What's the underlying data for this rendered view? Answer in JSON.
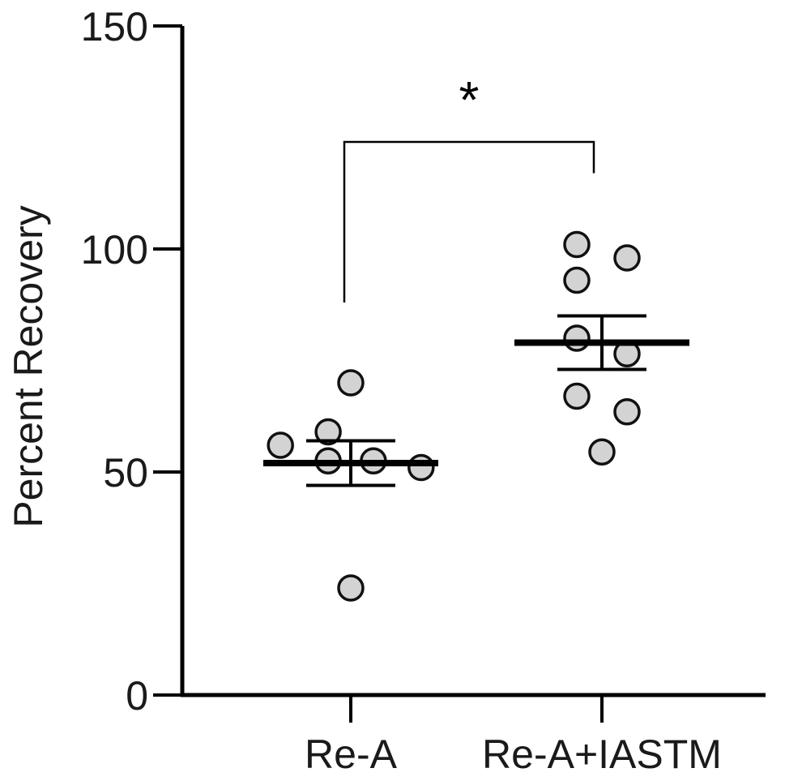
{
  "chart_data": {
    "type": "scatter",
    "title": "",
    "xlabel": "",
    "ylabel": "Percent Recovery",
    "ylim": [
      0,
      150
    ],
    "yticks": [
      0,
      50,
      100,
      150
    ],
    "categories": [
      "Re-A",
      "Re-A+IASTM"
    ],
    "groups": [
      {
        "category": "Re-A",
        "points": [
          {
            "offset": -0.28,
            "value": 56
          },
          {
            "offset": -0.09,
            "value": 59
          },
          {
            "offset": 0.0,
            "value": 70
          },
          {
            "offset": -0.09,
            "value": 52.5
          },
          {
            "offset": 0.09,
            "value": 52.5
          },
          {
            "offset": 0.28,
            "value": 51
          },
          {
            "offset": 0.0,
            "value": 24
          }
        ],
        "mean": 52,
        "error_low": 47,
        "error_high": 57
      },
      {
        "category": "Re-A+IASTM",
        "points": [
          {
            "offset": -0.1,
            "value": 101
          },
          {
            "offset": 0.1,
            "value": 98
          },
          {
            "offset": -0.1,
            "value": 93
          },
          {
            "offset": -0.1,
            "value": 80
          },
          {
            "offset": 0.1,
            "value": 76.5
          },
          {
            "offset": -0.1,
            "value": 67
          },
          {
            "offset": 0.1,
            "value": 63.5
          },
          {
            "offset": 0.0,
            "value": 54.5
          }
        ],
        "mean": 79,
        "error_low": 73,
        "error_high": 85
      }
    ],
    "significance": {
      "from": "Re-A",
      "to": "Re-A+IASTM",
      "label": "*",
      "bracket_value": 124,
      "left_end_value": 88,
      "right_end_value": 117
    },
    "colors": {
      "point_fill": "#d3d3d3",
      "point_stroke": "#111111",
      "line": "#000000"
    },
    "grid": false,
    "legend": "none"
  }
}
